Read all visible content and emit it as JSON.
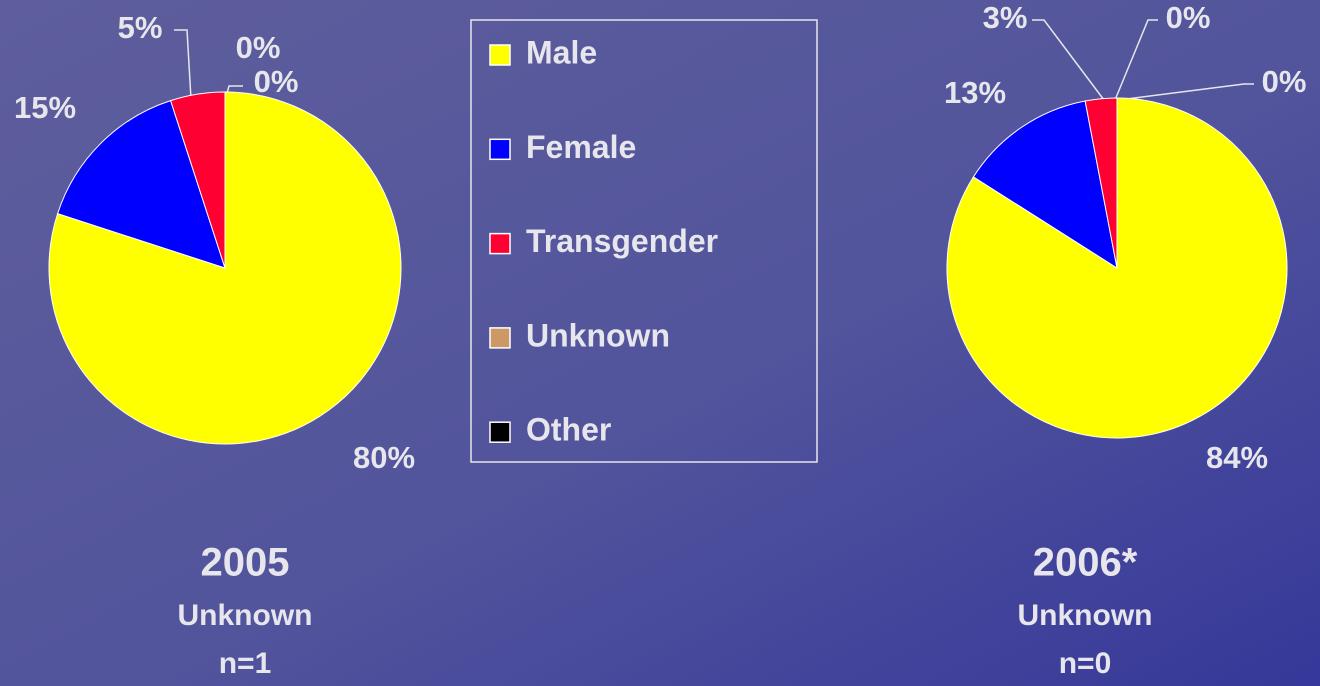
{
  "chart_data": [
    {
      "type": "pie",
      "title": "2005",
      "subtitle": "Unknown",
      "caption": "n=1",
      "categories": [
        "Male",
        "Female",
        "Transgender",
        "Unknown",
        "Other"
      ],
      "values": [
        80,
        15,
        5,
        0,
        0
      ],
      "value_labels": [
        "80%",
        "15%",
        "5%",
        "0%",
        "0%"
      ],
      "colors": [
        "#ffff00",
        "#0000ff",
        "#ff0033",
        "#cc9966",
        "#000000"
      ],
      "legend": "center"
    },
    {
      "type": "pie",
      "title": "2006*",
      "subtitle": "Unknown",
      "caption": "n=0",
      "categories": [
        "Male",
        "Female",
        "Transgender",
        "Unknown",
        "Other"
      ],
      "values": [
        84,
        13,
        3,
        0,
        0
      ],
      "value_labels": [
        "84%",
        "13%",
        "3%",
        "0%",
        "0%"
      ],
      "colors": [
        "#ffff00",
        "#0000ff",
        "#ff0033",
        "#cc9966",
        "#000000"
      ]
    }
  ]
}
